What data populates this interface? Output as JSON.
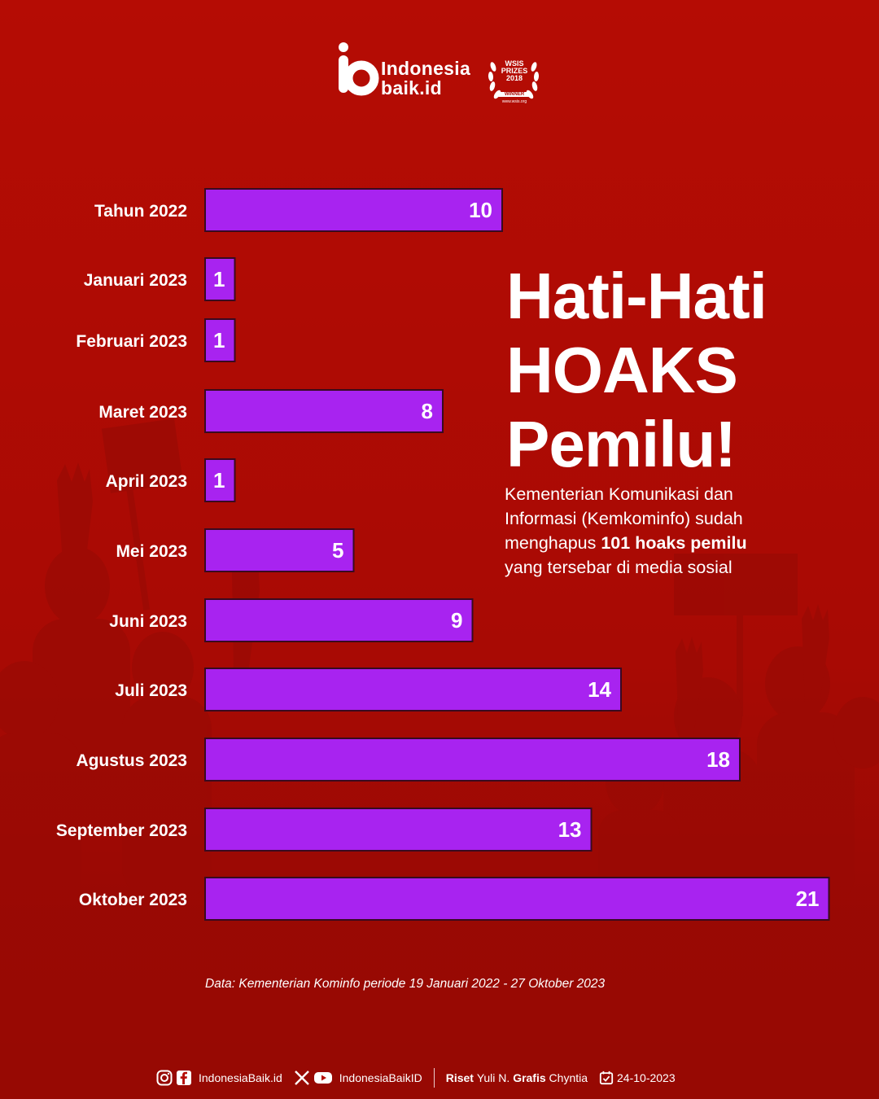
{
  "brand": {
    "line1": "Indonesia",
    "line2": "baik.id"
  },
  "award": {
    "line1": "WSIS",
    "line2": "PRIZES",
    "line3": "2018",
    "badge": "WINNER",
    "url": "www.wsis.org"
  },
  "headline": {
    "line1": "Hati-Hati",
    "line2": "HOAKS",
    "line3": "Pemilu!"
  },
  "description": {
    "line1": "Kementerian Komunikasi dan",
    "line2": "Informasi (Kemkominfo) sudah",
    "line3_pre": "menghapus ",
    "line3_bold": "101 hoaks pemilu",
    "line4": "yang tersebar di media sosial"
  },
  "chart_data": {
    "type": "bar",
    "orientation": "horizontal",
    "categories": [
      "Tahun 2022",
      "Januari 2023",
      "Februari 2023",
      "Maret 2023",
      "April 2023",
      "Mei 2023",
      "Juni 2023",
      "Juli 2023",
      "Agustus 2023",
      "September 2023",
      "Oktober 2023"
    ],
    "values": [
      10,
      1,
      1,
      8,
      1,
      5,
      9,
      14,
      18,
      13,
      21
    ],
    "bar_color": "#a823f0",
    "background_color": "#b50c04"
  },
  "source_note": "Data: Kementerian Kominfo periode 19 Januari 2022 - 27 Oktober 2023",
  "footer": {
    "handle1": "IndonesiaBaik.id",
    "handle2": "IndonesiaBaikID",
    "riset_label": "Riset",
    "riset_name": "Yuli N.",
    "grafis_label": "Grafis",
    "grafis_name": "Chyntia",
    "date": "24-10-2023"
  }
}
